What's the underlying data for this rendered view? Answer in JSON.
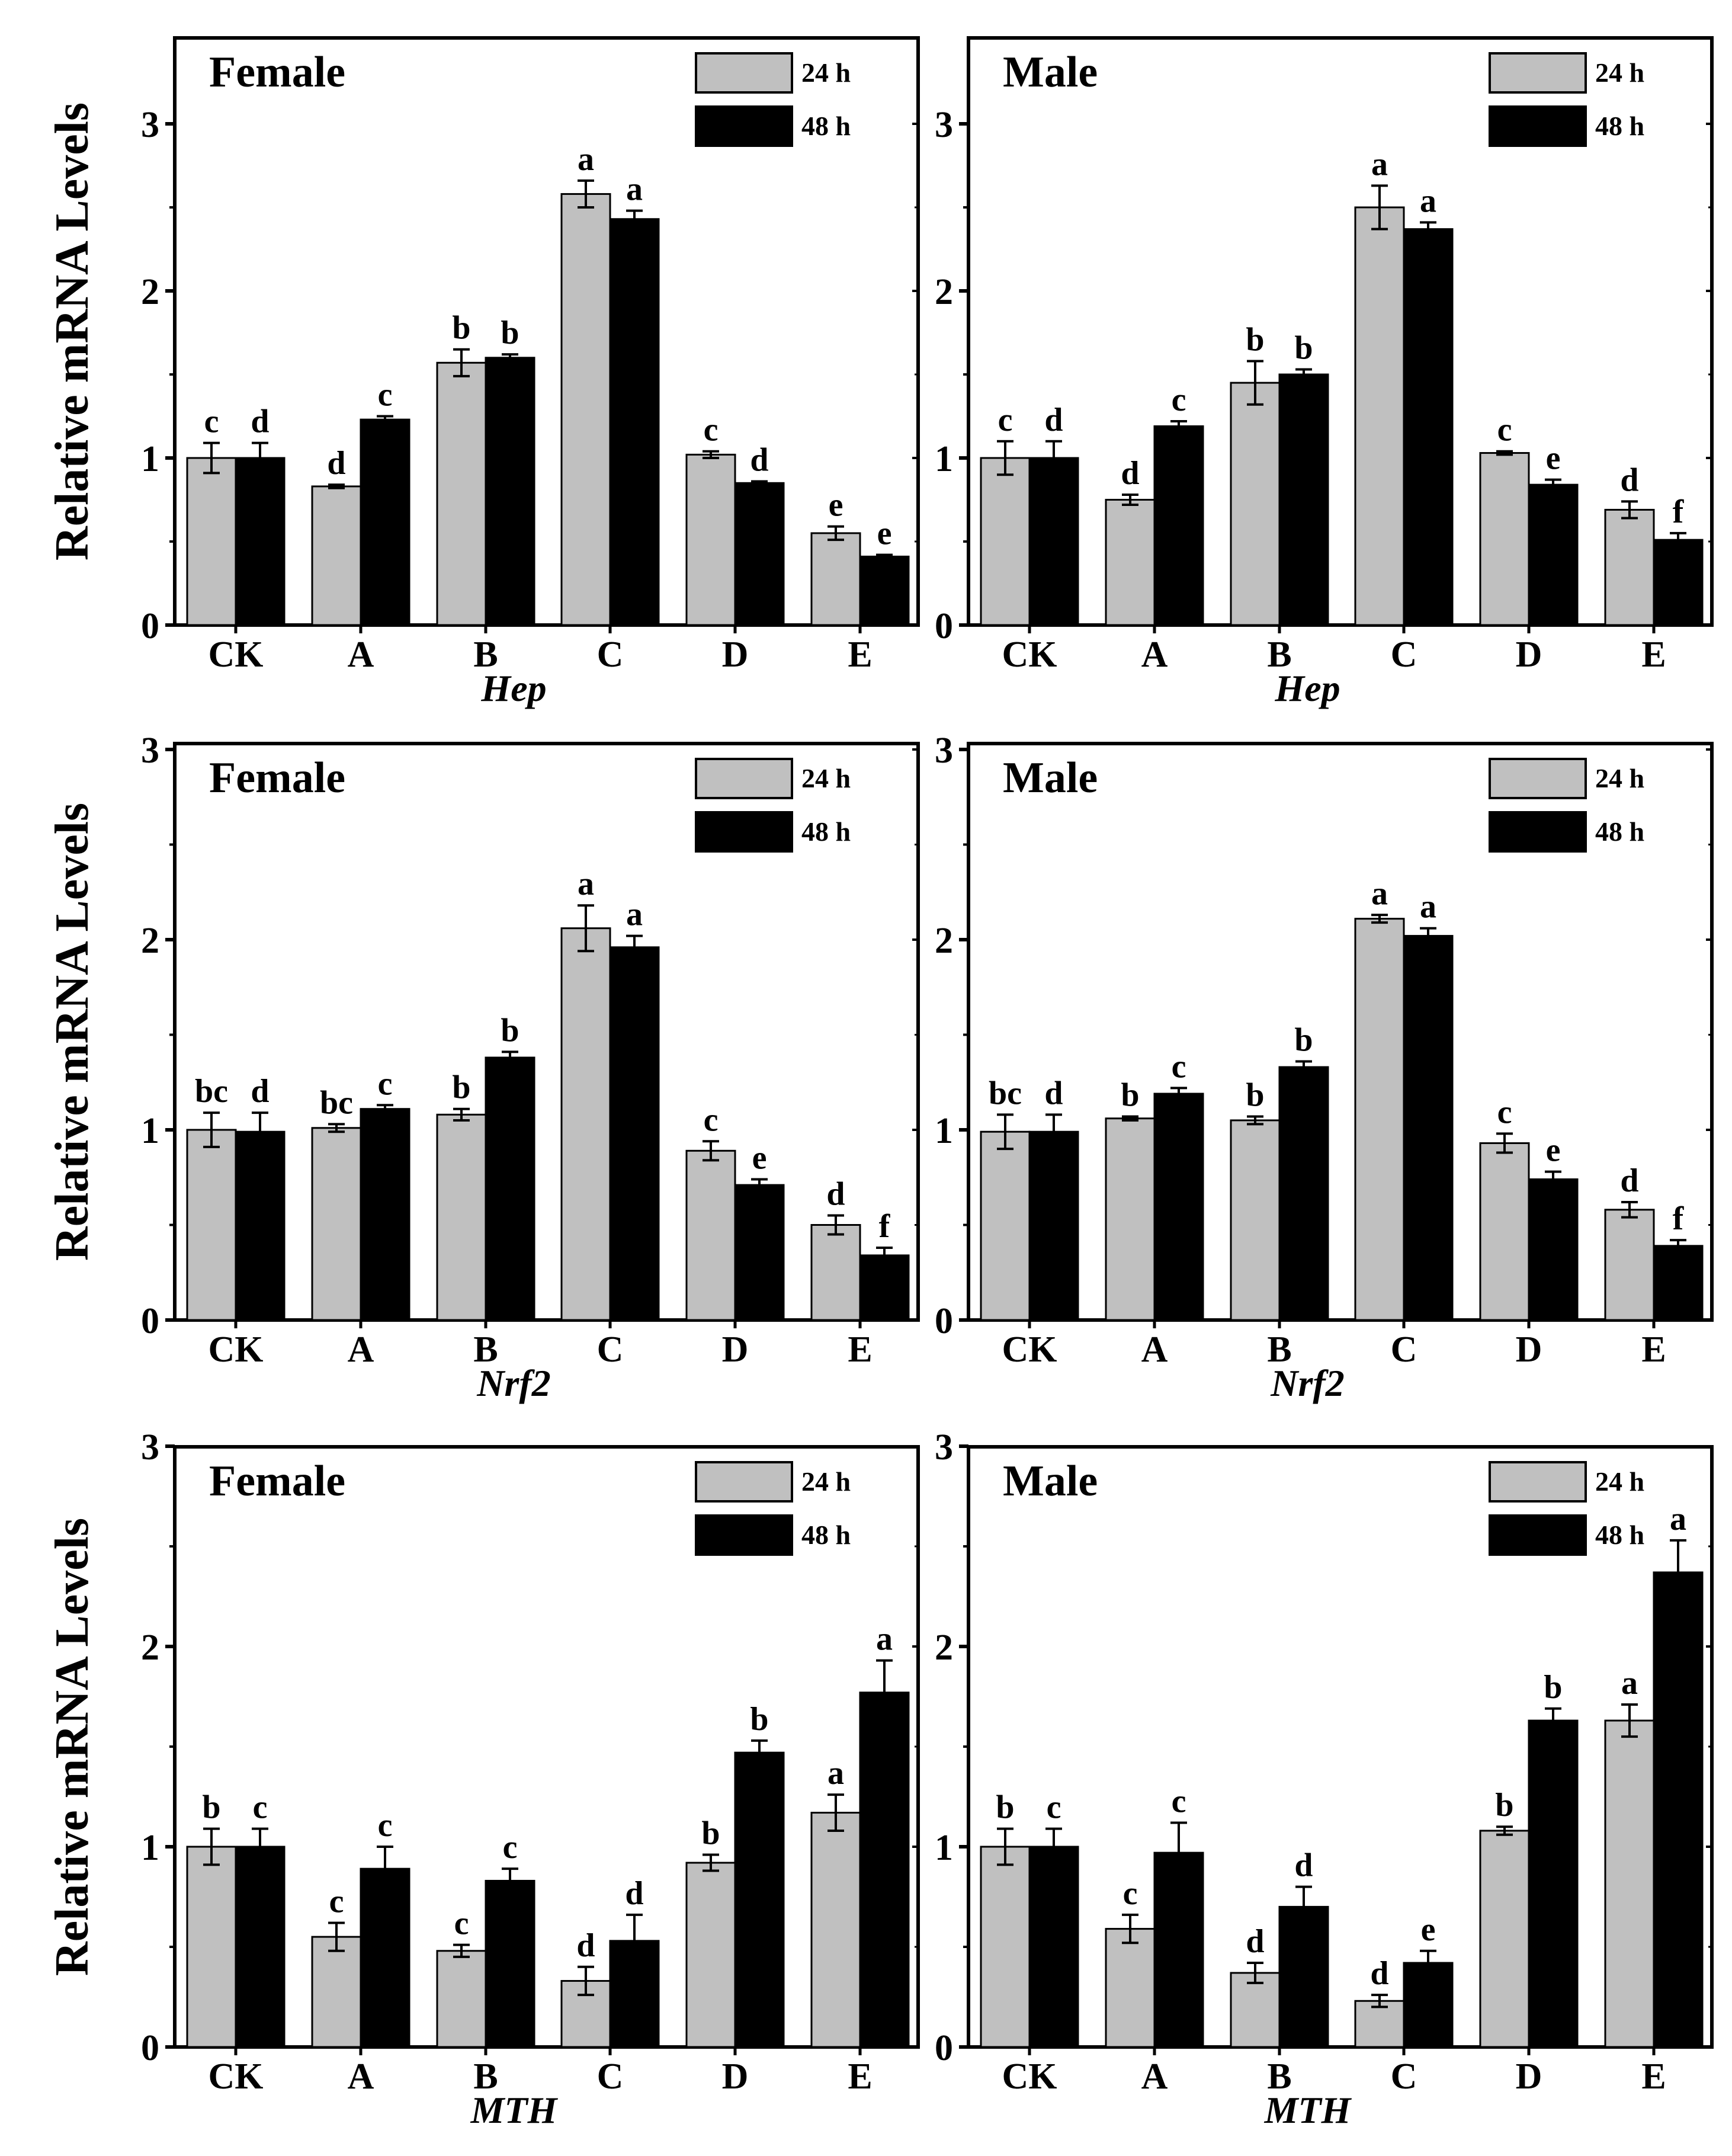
{
  "figure": {
    "ylabel": "Relative mRNA Levels",
    "legend_entries": [
      "24 h",
      "48 h"
    ],
    "colors": {
      "h24": "#c0c0c0",
      "h48": "#000000",
      "axis": "#000000"
    }
  },
  "chart_data": [
    {
      "type": "bar",
      "title": "Female",
      "xlabel": "Hep",
      "ylabel": "Relative mRNA Levels",
      "ylim": [
        0,
        3.5
      ],
      "yticks": [
        0,
        1,
        2,
        3
      ],
      "categories": [
        "CK",
        "A",
        "B",
        "C",
        "D",
        "E"
      ],
      "series": [
        {
          "name": "24 h",
          "values": [
            1.0,
            0.83,
            1.57,
            2.58,
            1.02,
            0.55
          ],
          "errors": [
            0.09,
            0.01,
            0.08,
            0.08,
            0.02,
            0.04
          ],
          "letters": [
            "c",
            "d",
            "b",
            "a",
            "c",
            "e"
          ]
        },
        {
          "name": "48 h",
          "values": [
            1.0,
            1.23,
            1.6,
            2.43,
            0.85,
            0.41
          ],
          "errors": [
            0.09,
            0.02,
            0.02,
            0.05,
            0.01,
            0.01
          ],
          "letters": [
            "d",
            "c",
            "b",
            "a",
            "d",
            "e"
          ]
        }
      ]
    },
    {
      "type": "bar",
      "title": "Male",
      "xlabel": "Hep",
      "ylabel": "Relative mRNA Levels",
      "ylim": [
        0,
        3.5
      ],
      "yticks": [
        0,
        1,
        2,
        3
      ],
      "categories": [
        "CK",
        "A",
        "B",
        "C",
        "D",
        "E"
      ],
      "series": [
        {
          "name": "24 h",
          "values": [
            1.0,
            0.75,
            1.45,
            2.5,
            1.03,
            0.69
          ],
          "errors": [
            0.1,
            0.03,
            0.13,
            0.13,
            0.01,
            0.05
          ],
          "letters": [
            "c",
            "d",
            "b",
            "a",
            "c",
            "d"
          ]
        },
        {
          "name": "48 h",
          "values": [
            1.0,
            1.19,
            1.5,
            2.37,
            0.84,
            0.51
          ],
          "errors": [
            0.1,
            0.03,
            0.03,
            0.04,
            0.03,
            0.04
          ],
          "letters": [
            "d",
            "c",
            "b",
            "a",
            "e",
            "f"
          ]
        }
      ]
    },
    {
      "type": "bar",
      "title": "Female",
      "xlabel": "Nrf2",
      "ylabel": "Relative mRNA Levels",
      "ylim": [
        0,
        3
      ],
      "yticks": [
        0,
        1,
        2,
        3
      ],
      "categories": [
        "CK",
        "A",
        "B",
        "C",
        "D",
        "E"
      ],
      "series": [
        {
          "name": "24 h",
          "values": [
            1.0,
            1.01,
            1.08,
            2.06,
            0.89,
            0.5
          ],
          "errors": [
            0.09,
            0.02,
            0.03,
            0.12,
            0.05,
            0.05
          ],
          "letters": [
            "bc",
            "bc",
            "b",
            "a",
            "c",
            "d"
          ]
        },
        {
          "name": "48 h",
          "values": [
            0.99,
            1.11,
            1.38,
            1.96,
            0.71,
            0.34
          ],
          "errors": [
            0.1,
            0.02,
            0.03,
            0.06,
            0.03,
            0.04
          ],
          "letters": [
            "d",
            "c",
            "b",
            "a",
            "e",
            "f"
          ]
        }
      ]
    },
    {
      "type": "bar",
      "title": "Male",
      "xlabel": "Nrf2",
      "ylabel": "Relative mRNA Levels",
      "ylim": [
        0,
        3
      ],
      "yticks": [
        0,
        1,
        2,
        3
      ],
      "categories": [
        "CK",
        "A",
        "B",
        "C",
        "D",
        "E"
      ],
      "series": [
        {
          "name": "24 h",
          "values": [
            0.99,
            1.06,
            1.05,
            2.11,
            0.93,
            0.58
          ],
          "errors": [
            0.09,
            0.01,
            0.02,
            0.02,
            0.05,
            0.04
          ],
          "letters": [
            "bc",
            "b",
            "b",
            "a",
            "c",
            "d"
          ]
        },
        {
          "name": "48 h",
          "values": [
            0.99,
            1.19,
            1.33,
            2.02,
            0.74,
            0.39
          ],
          "errors": [
            0.09,
            0.03,
            0.03,
            0.04,
            0.04,
            0.03
          ],
          "letters": [
            "d",
            "c",
            "b",
            "a",
            "e",
            "f"
          ]
        }
      ]
    },
    {
      "type": "bar",
      "title": "Female",
      "xlabel": "MTH",
      "ylabel": "Relative mRNA Levels",
      "ylim": [
        0,
        3
      ],
      "yticks": [
        0,
        1,
        2,
        3
      ],
      "categories": [
        "CK",
        "A",
        "B",
        "C",
        "D",
        "E"
      ],
      "series": [
        {
          "name": "24 h",
          "values": [
            1.0,
            0.55,
            0.48,
            0.33,
            0.92,
            1.17
          ],
          "errors": [
            0.09,
            0.07,
            0.03,
            0.07,
            0.04,
            0.09
          ],
          "letters": [
            "b",
            "c",
            "c",
            "d",
            "b",
            "a"
          ]
        },
        {
          "name": "48 h",
          "values": [
            1.0,
            0.89,
            0.83,
            0.53,
            1.47,
            1.77
          ],
          "errors": [
            0.09,
            0.11,
            0.06,
            0.13,
            0.06,
            0.16
          ],
          "letters": [
            "c",
            "c",
            "c",
            "d",
            "b",
            "a"
          ]
        }
      ]
    },
    {
      "type": "bar",
      "title": "Male",
      "xlabel": "MTH",
      "ylabel": "Relative mRNA Levels",
      "ylim": [
        0,
        3
      ],
      "yticks": [
        0,
        1,
        2,
        3
      ],
      "categories": [
        "CK",
        "A",
        "B",
        "C",
        "D",
        "E"
      ],
      "series": [
        {
          "name": "24 h",
          "values": [
            1.0,
            0.59,
            0.37,
            0.23,
            1.08,
            1.63
          ],
          "errors": [
            0.09,
            0.07,
            0.05,
            0.03,
            0.02,
            0.08
          ],
          "letters": [
            "b",
            "c",
            "d",
            "d",
            "b",
            "a"
          ]
        },
        {
          "name": "48 h",
          "values": [
            1.0,
            0.97,
            0.7,
            0.42,
            1.63,
            2.37
          ],
          "errors": [
            0.09,
            0.15,
            0.1,
            0.06,
            0.06,
            0.16
          ],
          "letters": [
            "c",
            "c",
            "d",
            "e",
            "b",
            "a"
          ]
        }
      ]
    }
  ]
}
